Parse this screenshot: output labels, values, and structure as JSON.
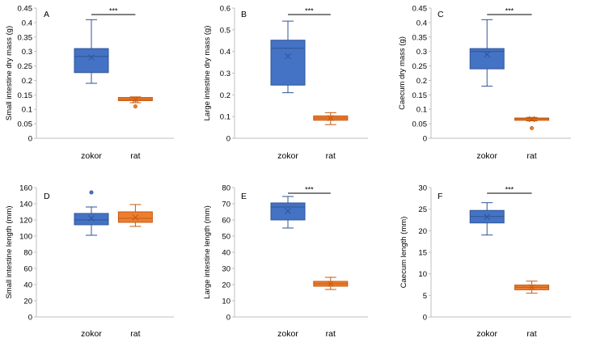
{
  "colors": {
    "zokor": "#4472c4",
    "zokor_edge": "#2f5597",
    "rat": "#ed7d31",
    "rat_edge": "#c55a11",
    "axis": "#bfbfbf",
    "text": "#000000"
  },
  "significance_label": "***",
  "chart_data": [
    {
      "type": "box",
      "panel": "A",
      "ylabel": "Small intestine dry mass (g)",
      "ylim": [
        0,
        0.45
      ],
      "yticks": [
        "0",
        "0.05",
        "0.1",
        "0.15",
        "0.2",
        "0.25",
        "0.3",
        "0.35",
        "0.4",
        "0.45"
      ],
      "categories": [
        "zokor",
        "rat"
      ],
      "series": [
        {
          "name": "zokor",
          "min": 0.19,
          "q1": 0.227,
          "median": 0.283,
          "q3": 0.31,
          "max": 0.41,
          "mean": 0.28,
          "outliers": []
        },
        {
          "name": "rat",
          "min": 0.123,
          "q1": 0.13,
          "median": 0.135,
          "q3": 0.141,
          "max": 0.143,
          "mean": 0.133,
          "outliers": [
            0.11
          ]
        }
      ],
      "significance": true
    },
    {
      "type": "box",
      "panel": "B",
      "ylabel": "Large intestine dry mass (g)",
      "ylim": [
        0,
        0.6
      ],
      "yticks": [
        "0",
        "0.1",
        "0.2",
        "0.3",
        "0.4",
        "0.5",
        "0.6"
      ],
      "categories": [
        "zokor",
        "rat"
      ],
      "series": [
        {
          "name": "zokor",
          "min": 0.21,
          "q1": 0.245,
          "median": 0.415,
          "q3": 0.452,
          "max": 0.54,
          "mean": 0.378,
          "outliers": []
        },
        {
          "name": "rat",
          "min": 0.063,
          "q1": 0.083,
          "median": 0.093,
          "q3": 0.103,
          "max": 0.118,
          "mean": 0.093,
          "outliers": []
        }
      ],
      "significance": true
    },
    {
      "type": "box",
      "panel": "C",
      "ylabel": "Caecum dry mass (g)",
      "ylim": [
        0,
        0.45
      ],
      "yticks": [
        "0",
        "0.05",
        "0.1",
        "0.15",
        "0.2",
        "0.25",
        "0.3",
        "0.35",
        "0.4",
        "0.45"
      ],
      "categories": [
        "zokor",
        "rat"
      ],
      "series": [
        {
          "name": "zokor",
          "min": 0.18,
          "q1": 0.24,
          "median": 0.3,
          "q3": 0.31,
          "max": 0.41,
          "mean": 0.29,
          "outliers": []
        },
        {
          "name": "rat",
          "min": 0.06,
          "q1": 0.062,
          "median": 0.067,
          "q3": 0.07,
          "max": 0.072,
          "mean": 0.066,
          "outliers": [
            0.035
          ]
        }
      ],
      "significance": true
    },
    {
      "type": "box",
      "panel": "D",
      "ylabel": "Small intestine length (mm)",
      "ylim": [
        0,
        160
      ],
      "yticks": [
        "0",
        "20",
        "40",
        "60",
        "80",
        "100",
        "120",
        "140",
        "160"
      ],
      "categories": [
        "zokor",
        "rat"
      ],
      "series": [
        {
          "name": "zokor",
          "min": 101,
          "q1": 114,
          "median": 120,
          "q3": 128,
          "max": 136,
          "mean": 122,
          "outliers": [
            154
          ]
        },
        {
          "name": "rat",
          "min": 112,
          "q1": 117,
          "median": 122,
          "q3": 130,
          "max": 139,
          "mean": 123,
          "outliers": []
        }
      ],
      "significance": false
    },
    {
      "type": "box",
      "panel": "E",
      "ylabel": "Large intestine length (mm)",
      "ylim": [
        0,
        80
      ],
      "yticks": [
        "0",
        "10",
        "20",
        "30",
        "40",
        "50",
        "60",
        "70",
        "80"
      ],
      "categories": [
        "zokor",
        "rat"
      ],
      "series": [
        {
          "name": "zokor",
          "min": 55,
          "q1": 60,
          "median": 68,
          "q3": 70.5,
          "max": 74.5,
          "mean": 65.5,
          "outliers": []
        },
        {
          "name": "rat",
          "min": 17,
          "q1": 19,
          "median": 20.5,
          "q3": 22,
          "max": 24.5,
          "mean": 20.5,
          "outliers": []
        }
      ],
      "significance": true
    },
    {
      "type": "box",
      "panel": "F",
      "ylabel": "Caecum length (mm)",
      "ylim": [
        0,
        30
      ],
      "yticks": [
        "0",
        "5",
        "10",
        "15",
        "20",
        "25",
        "30"
      ],
      "categories": [
        "zokor",
        "rat"
      ],
      "series": [
        {
          "name": "zokor",
          "min": 19,
          "q1": 21.8,
          "median": 23.3,
          "q3": 24.7,
          "max": 26.5,
          "mean": 23.2,
          "outliers": []
        },
        {
          "name": "rat",
          "min": 5.5,
          "q1": 6.3,
          "median": 6.9,
          "q3": 7.4,
          "max": 8.3,
          "mean": 6.9,
          "outliers": []
        }
      ],
      "significance": true
    }
  ]
}
